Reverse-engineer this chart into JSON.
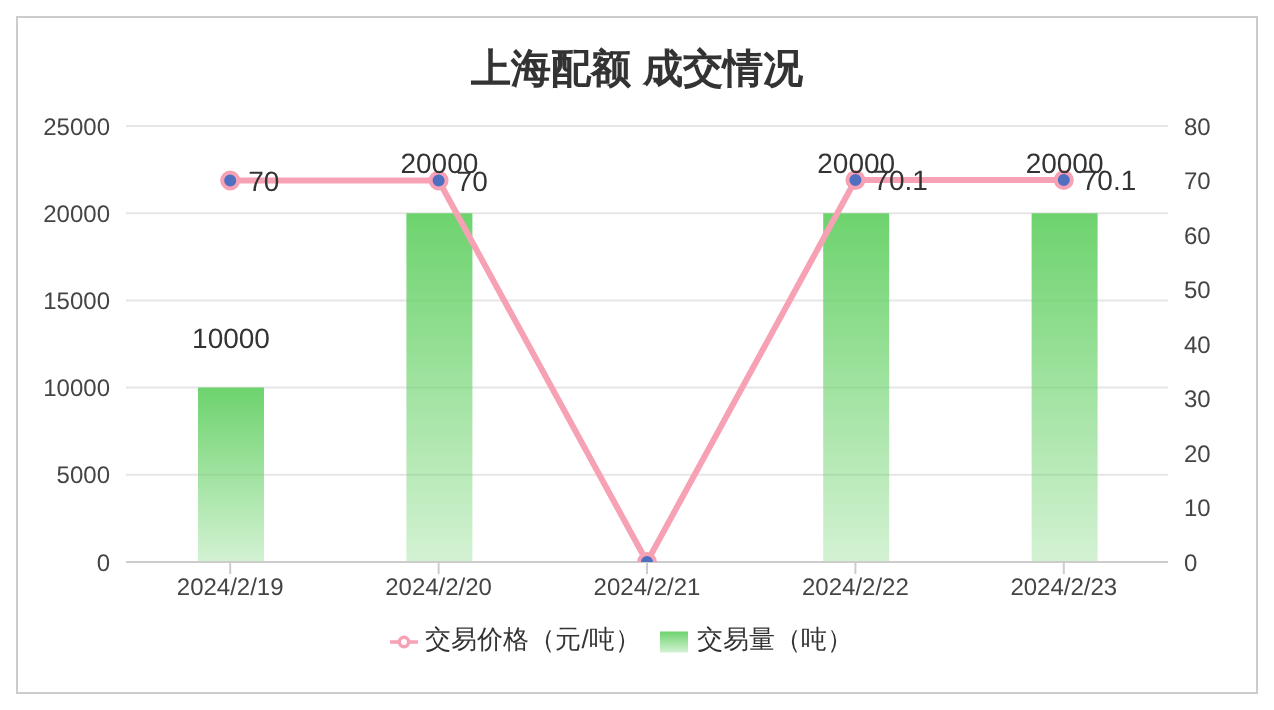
{
  "chart_data": {
    "type": "bar",
    "title": "上海配额 成交情况",
    "categories": [
      "2024/2/19",
      "2024/2/20",
      "2024/2/21",
      "2024/2/22",
      "2024/2/23"
    ],
    "series": [
      {
        "name": "交易量（吨）",
        "color": "#6dd36d",
        "values": [
          10000,
          20000,
          0,
          20000,
          20000
        ],
        "value_labels": [
          "10000",
          "20000",
          null,
          "20000",
          "20000"
        ]
      },
      {
        "name": "交易价格（元/吨）",
        "type": "line",
        "axis": "y2",
        "color": "#f7a1b5",
        "values": [
          70,
          70,
          0,
          70.1,
          70.1
        ],
        "value_labels": [
          "70",
          "70",
          null,
          "70.1",
          "70.1"
        ]
      }
    ],
    "ylim": [
      0,
      25000
    ],
    "yticks": [
      0,
      5000,
      10000,
      15000,
      20000,
      25000
    ],
    "y2lim": [
      0,
      80
    ],
    "y2ticks": [
      0,
      10,
      20,
      30,
      40,
      50,
      60,
      70,
      80
    ],
    "grid": "y",
    "legend": "bottom",
    "marker": "circle",
    "line_style": "solid"
  }
}
